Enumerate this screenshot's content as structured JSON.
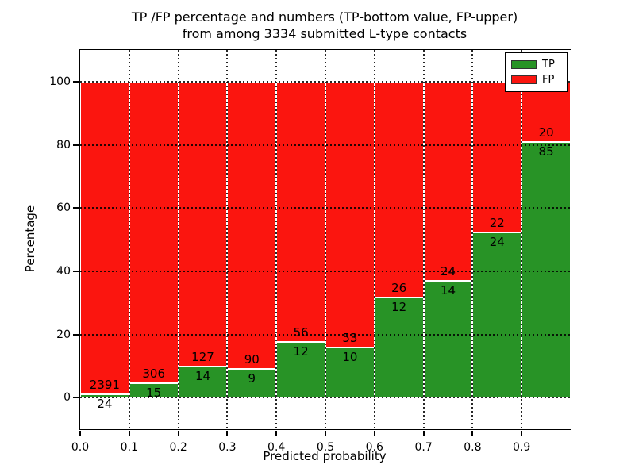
{
  "figure": {
    "title_line1": "TP /FP percentage and numbers (TP-bottom value, FP-upper)",
    "title_line2": "from among 3334 submitted L-type contacts"
  },
  "axes": {
    "xlabel": "Predicted probability",
    "ylabel": "Percentage"
  },
  "legend": {
    "position": "upper right",
    "tp_label": "TP",
    "fp_label": "FP"
  },
  "chart_data": {
    "type": "bar",
    "stacked": true,
    "normalized_to_percent": true,
    "title": "TP /FP percentage and numbers (TP-bottom value, FP-upper)\nfrom among 3334 submitted L-type contacts",
    "xlabel": "Predicted probability",
    "ylabel": "Percentage",
    "total_contacts": 3334,
    "xlim": [
      0.0,
      1.0
    ],
    "ylim": [
      -10,
      110
    ],
    "grid": true,
    "bin_width": 0.1,
    "categories": [
      "0.0-0.1",
      "0.1-0.2",
      "0.2-0.3",
      "0.3-0.4",
      "0.4-0.5",
      "0.5-0.6",
      "0.6-0.7",
      "0.7-0.8",
      "0.8-0.9",
      "0.9-1.0"
    ],
    "xtick_labels": [
      "0.0",
      "0.1",
      "0.2",
      "0.3",
      "0.4",
      "0.5",
      "0.6",
      "0.7",
      "0.8",
      "0.9"
    ],
    "ytick_values": [
      0,
      20,
      40,
      60,
      80,
      100
    ],
    "series": [
      {
        "name": "TP",
        "color": "#289326",
        "counts": [
          24,
          15,
          14,
          9,
          12,
          10,
          12,
          14,
          24,
          85
        ]
      },
      {
        "name": "FP",
        "color": "#fb150f",
        "counts": [
          2391,
          306,
          127,
          90,
          56,
          53,
          26,
          24,
          22,
          20
        ]
      }
    ],
    "tp_percentages": [
      0.99,
      4.67,
      9.93,
      9.09,
      17.65,
      15.87,
      31.58,
      36.84,
      52.17,
      80.95
    ],
    "annotation_note": "TP count printed below segment boundary, FP count printed above it"
  }
}
